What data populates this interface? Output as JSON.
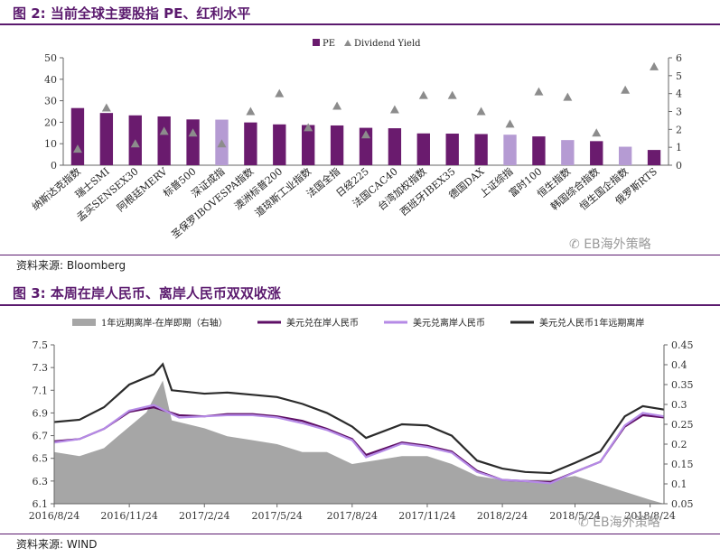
{
  "figure2": {
    "title": "图 2:  当前全球主要股指 PE、红利水平",
    "source": "资料来源:  Bloomberg",
    "watermark": "EB海外策略"
  },
  "figure3": {
    "title": "图 3:  本周在岸人民币、离岸人民币双双收涨",
    "source": "资料来源:  WIND",
    "watermark": "EB海外策略"
  },
  "colors": {
    "purple": "#6a1b6e",
    "lavender": "#b59bd3",
    "triangle": "#8c8c8c",
    "title": "#5b1a6e",
    "area": "#a6a6a6",
    "onshore": "#5e0f66",
    "offshore": "#b58ae6",
    "forward": "#2b2b2b"
  },
  "chart_data": [
    {
      "type": "bar",
      "legend": [
        "PE",
        "Dividend Yield"
      ],
      "legend_position": "top-center",
      "categories": [
        "纳斯达克指数",
        "瑞士SMI",
        "孟买SENSEX30",
        "阿根廷MERV",
        "标普500",
        "深证成指",
        "圣保罗IBOVESPA指数",
        "澳洲标普200",
        "道琼斯工业指数",
        "法国全指",
        "日经225",
        "法国CAC40",
        "台湾加权指数",
        "西班牙IBEX35",
        "德国DAX",
        "上证综指",
        "富时100",
        "恒生指数",
        "韩国综合指数",
        "恒生国企指数",
        "俄罗斯RTS"
      ],
      "series": [
        {
          "name": "PE",
          "values": [
            26.6,
            24.3,
            23.2,
            22.7,
            21.3,
            21.2,
            19.9,
            19.0,
            18.7,
            18.5,
            17.4,
            17.2,
            14.8,
            14.7,
            14.5,
            14.2,
            13.4,
            11.7,
            11.2,
            8.6,
            7.1
          ],
          "highlight": [
            5,
            15,
            17,
            19
          ]
        },
        {
          "name": "Dividend Yield",
          "values": [
            0.9,
            3.2,
            1.2,
            1.9,
            1.8,
            1.2,
            3.0,
            4.0,
            2.1,
            3.3,
            1.7,
            3.1,
            3.9,
            3.9,
            3.0,
            2.3,
            4.1,
            3.8,
            1.8,
            4.2,
            5.5
          ]
        }
      ],
      "ylim": [
        0,
        50
      ],
      "yticks": [
        "0",
        "10",
        "20",
        "30",
        "40",
        "50"
      ],
      "y2lim": [
        0,
        6
      ],
      "y2ticks": [
        "0",
        "1",
        "2",
        "3",
        "4",
        "5",
        "6"
      ]
    },
    {
      "type": "line",
      "legend": [
        "1年远期离岸-在岸即期（右轴）",
        "美元兑在岸人民币",
        "美元兑离岸人民币",
        "美元兑人民币1年远期离岸"
      ],
      "legend_position": "top",
      "x_start": "2016/8/24",
      "x_end": "2018/9/10",
      "xticks": [
        "2016/8/24",
        "2016/11/24",
        "2017/2/24",
        "2017/5/24",
        "2017/8/24",
        "2017/11/24",
        "2018/2/24",
        "2018/5/24",
        "2018/8/24"
      ],
      "ylim": [
        6.1,
        7.5
      ],
      "yticks": [
        "6.1",
        "6.3",
        "6.5",
        "6.7",
        "6.9",
        "7.1",
        "7.3",
        "7.5"
      ],
      "y2lim": [
        0.05,
        0.45
      ],
      "y2ticks": [
        "0.05",
        "0.1",
        "0.15",
        "0.2",
        "0.25",
        "0.3",
        "0.35",
        "0.4",
        "0.45"
      ],
      "series": [
        {
          "name": "1年远期离岸-在岸即期（右轴）",
          "axis": "right",
          "style": "area",
          "points": [
            [
              "2016/8/24",
              0.18
            ],
            [
              "2016/9/24",
              0.17
            ],
            [
              "2016/10/24",
              0.19
            ],
            [
              "2016/11/10",
              0.22
            ],
            [
              "2016/12/15",
              0.28
            ],
            [
              "2017/1/4",
              0.36
            ],
            [
              "2017/1/15",
              0.26
            ],
            [
              "2017/2/24",
              0.24
            ],
            [
              "2017/3/24",
              0.22
            ],
            [
              "2017/4/24",
              0.21
            ],
            [
              "2017/5/24",
              0.2
            ],
            [
              "2017/6/24",
              0.18
            ],
            [
              "2017/7/24",
              0.18
            ],
            [
              "2017/8/24",
              0.15
            ],
            [
              "2017/9/24",
              0.16
            ],
            [
              "2017/10/24",
              0.17
            ],
            [
              "2017/11/24",
              0.17
            ],
            [
              "2017/12/24",
              0.15
            ],
            [
              "2018/1/24",
              0.12
            ],
            [
              "2018/2/24",
              0.11
            ],
            [
              "2018/3/24",
              0.11
            ],
            [
              "2018/4/24",
              0.11
            ],
            [
              "2018/5/24",
              0.12
            ],
            [
              "2018/6/24",
              0.1
            ],
            [
              "2018/7/24",
              0.08
            ],
            [
              "2018/8/24",
              0.06
            ],
            [
              "2018/9/10",
              0.05
            ]
          ]
        },
        {
          "name": "美元兑在岸人民币",
          "axis": "left",
          "style": "line",
          "points": [
            [
              "2016/8/24",
              6.65
            ],
            [
              "2016/9/24",
              6.67
            ],
            [
              "2016/10/24",
              6.76
            ],
            [
              "2016/11/24",
              6.91
            ],
            [
              "2016/12/24",
              6.95
            ],
            [
              "2017/1/24",
              6.88
            ],
            [
              "2017/2/24",
              6.87
            ],
            [
              "2017/3/24",
              6.89
            ],
            [
              "2017/4/24",
              6.89
            ],
            [
              "2017/5/24",
              6.87
            ],
            [
              "2017/6/24",
              6.83
            ],
            [
              "2017/7/24",
              6.76
            ],
            [
              "2017/8/24",
              6.67
            ],
            [
              "2017/9/10",
              6.53
            ],
            [
              "2017/10/24",
              6.64
            ],
            [
              "2017/11/24",
              6.61
            ],
            [
              "2017/12/24",
              6.56
            ],
            [
              "2018/1/24",
              6.39
            ],
            [
              "2018/2/24",
              6.31
            ],
            [
              "2018/3/24",
              6.3
            ],
            [
              "2018/4/24",
              6.29
            ],
            [
              "2018/5/24",
              6.38
            ],
            [
              "2018/6/24",
              6.47
            ],
            [
              "2018/7/24",
              6.78
            ],
            [
              "2018/8/15",
              6.88
            ],
            [
              "2018/9/10",
              6.86
            ]
          ]
        },
        {
          "name": "美元兑离岸人民币",
          "axis": "left",
          "style": "line",
          "points": [
            [
              "2016/8/24",
              6.64
            ],
            [
              "2016/9/24",
              6.67
            ],
            [
              "2016/10/24",
              6.76
            ],
            [
              "2016/11/24",
              6.92
            ],
            [
              "2016/12/24",
              6.97
            ],
            [
              "2017/1/24",
              6.86
            ],
            [
              "2017/2/24",
              6.87
            ],
            [
              "2017/3/24",
              6.88
            ],
            [
              "2017/4/24",
              6.88
            ],
            [
              "2017/5/24",
              6.86
            ],
            [
              "2017/6/24",
              6.81
            ],
            [
              "2017/7/24",
              6.75
            ],
            [
              "2017/8/24",
              6.66
            ],
            [
              "2017/9/10",
              6.51
            ],
            [
              "2017/10/24",
              6.63
            ],
            [
              "2017/11/24",
              6.6
            ],
            [
              "2017/12/24",
              6.55
            ],
            [
              "2018/1/24",
              6.38
            ],
            [
              "2018/2/24",
              6.31
            ],
            [
              "2018/3/24",
              6.3
            ],
            [
              "2018/4/24",
              6.28
            ],
            [
              "2018/5/24",
              6.38
            ],
            [
              "2018/6/24",
              6.47
            ],
            [
              "2018/7/24",
              6.79
            ],
            [
              "2018/8/15",
              6.9
            ],
            [
              "2018/9/10",
              6.87
            ]
          ]
        },
        {
          "name": "美元兑人民币1年远期离岸",
          "axis": "left",
          "style": "line",
          "points": [
            [
              "2016/8/24",
              6.82
            ],
            [
              "2016/9/24",
              6.84
            ],
            [
              "2016/10/24",
              6.95
            ],
            [
              "2016/11/24",
              7.15
            ],
            [
              "2016/12/24",
              7.24
            ],
            [
              "2017/1/4",
              7.33
            ],
            [
              "2017/1/15",
              7.1
            ],
            [
              "2017/2/24",
              7.07
            ],
            [
              "2017/3/24",
              7.08
            ],
            [
              "2017/4/24",
              7.06
            ],
            [
              "2017/5/24",
              7.04
            ],
            [
              "2017/6/24",
              6.98
            ],
            [
              "2017/7/24",
              6.9
            ],
            [
              "2017/8/24",
              6.78
            ],
            [
              "2017/9/10",
              6.68
            ],
            [
              "2017/10/24",
              6.8
            ],
            [
              "2017/11/24",
              6.79
            ],
            [
              "2017/12/24",
              6.7
            ],
            [
              "2018/1/24",
              6.48
            ],
            [
              "2018/2/24",
              6.41
            ],
            [
              "2018/3/24",
              6.38
            ],
            [
              "2018/4/24",
              6.37
            ],
            [
              "2018/5/24",
              6.46
            ],
            [
              "2018/6/24",
              6.56
            ],
            [
              "2018/7/24",
              6.87
            ],
            [
              "2018/8/15",
              6.96
            ],
            [
              "2018/9/10",
              6.93
            ]
          ]
        }
      ]
    }
  ]
}
